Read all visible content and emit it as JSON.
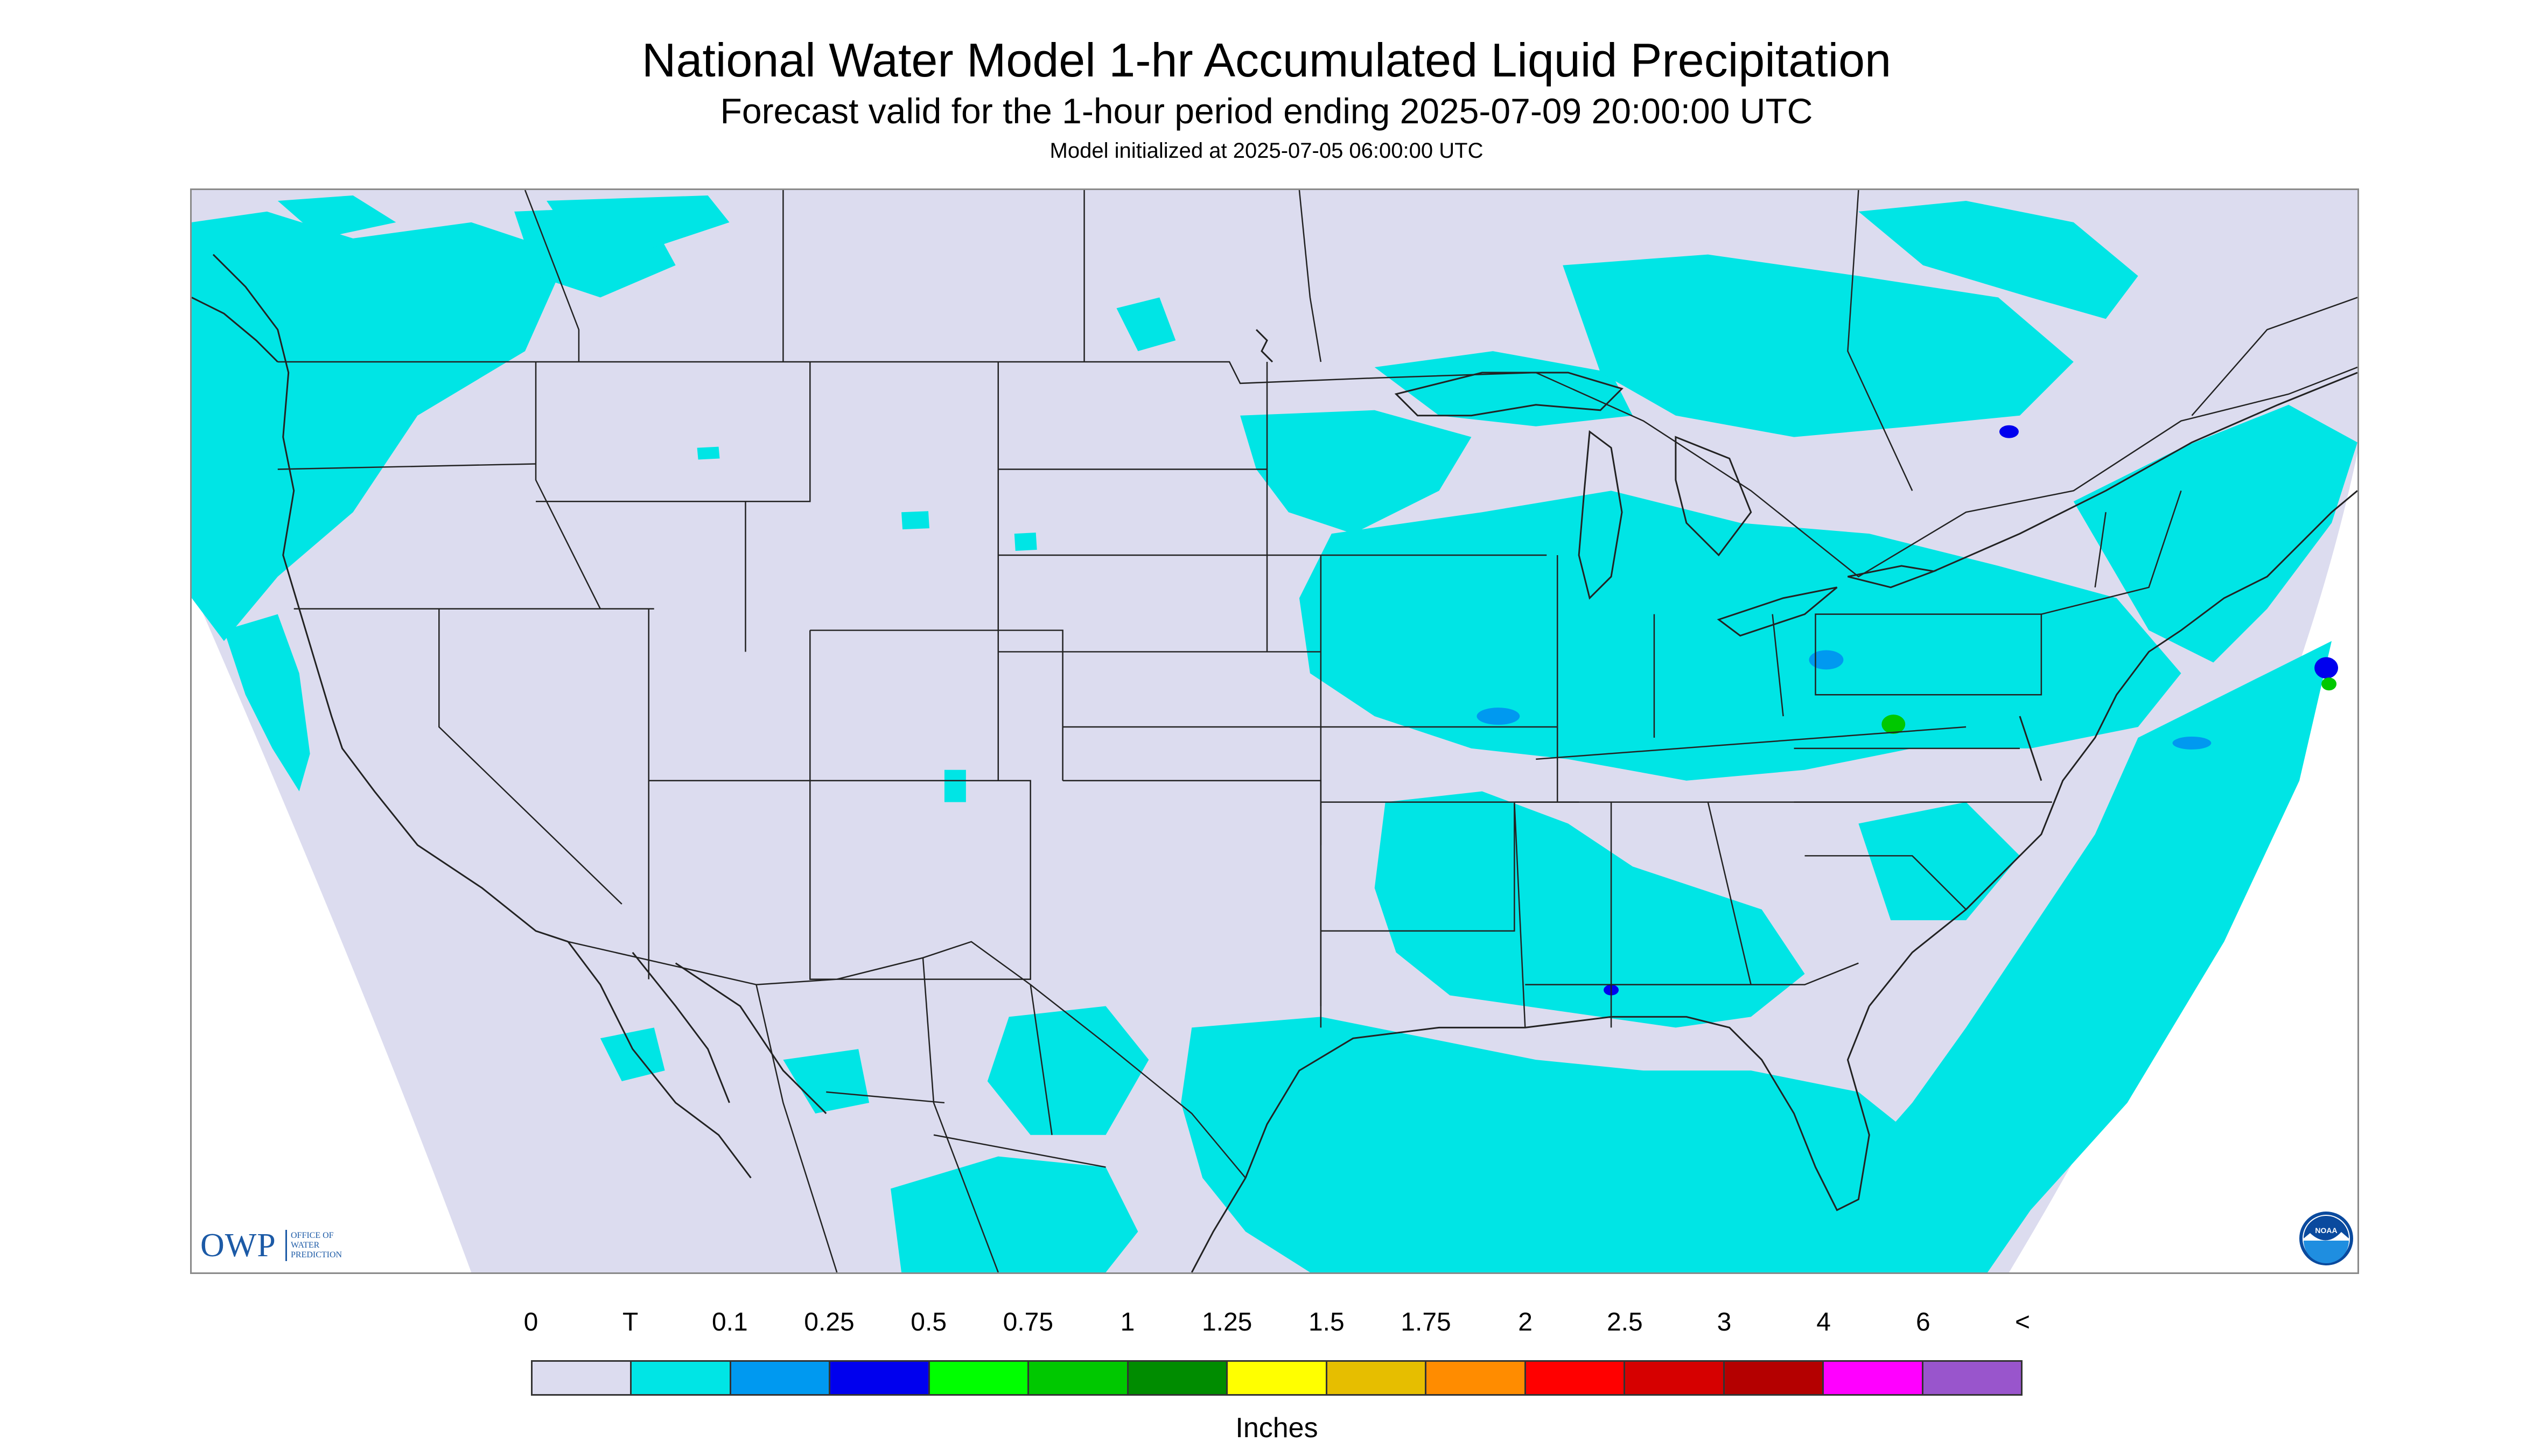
{
  "title": "National Water Model 1-hr Accumulated Liquid Precipitation",
  "subtitle": "Forecast valid for the 1-hour period ending 2025-07-09 20:00:00 UTC",
  "init_text": "Model initialized at 2025-07-05 06:00:00 UTC",
  "map": {
    "background_color": "#ffffff",
    "land_color": "#dcdcef",
    "precip_color": "#00e5e5",
    "boundary_color": "#222222"
  },
  "logos": {
    "owp": {
      "name": "OWP",
      "line1": "OFFICE OF",
      "line2": "WATER",
      "line3": "PREDICTION"
    },
    "noaa": {
      "name": "NOAA"
    }
  },
  "legend": {
    "labels": [
      "0",
      "T",
      "0.1",
      "0.25",
      "0.5",
      "0.75",
      "1",
      "1.25",
      "1.5",
      "1.75",
      "2",
      "2.5",
      "3",
      "4",
      "6",
      "<"
    ],
    "colors": [
      "#dcdcef",
      "#00e5e5",
      "#0099f0",
      "#0000ee",
      "#00ff00",
      "#00c800",
      "#008c00",
      "#ffff00",
      "#e6be00",
      "#ff8c00",
      "#ff0000",
      "#d60000",
      "#b40000",
      "#ff00ff",
      "#9955cc"
    ],
    "unit": "Inches"
  }
}
